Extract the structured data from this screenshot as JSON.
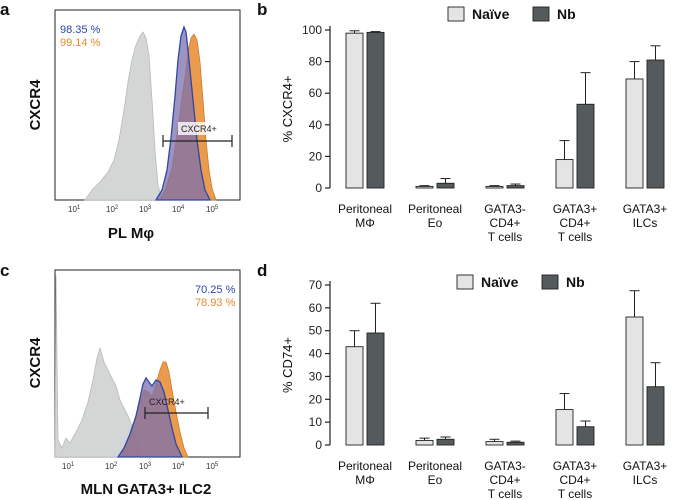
{
  "panels": {
    "a": {
      "letter": "a",
      "ylabel": "CXCR4",
      "xlabel": "PL Mφ",
      "pct_blue": "98.35 %",
      "pct_orange": "99.14 %",
      "gate_label": "CXCR4+"
    },
    "b": {
      "letter": "b"
    },
    "c": {
      "letter": "c",
      "ylabel": "CXCR4",
      "xlabel": "MLN GATA3+ ILC2",
      "pct_blue": "70.25 %",
      "pct_orange": "78.93 %",
      "gate_label": "CXCR4+"
    },
    "d": {
      "letter": "d"
    }
  },
  "colors": {
    "naive": "#e4e4e4",
    "nb": "#555a5c",
    "blue": "#2f47a5",
    "orange": "#e8892e",
    "grey_hist": "#d4d6d6"
  },
  "chart_data": [
    {
      "panel": "a",
      "type": "area",
      "ylabel": "CXCR4",
      "xlabel": "PL Mφ",
      "x_scale": "log",
      "x_ticks": [
        "10^1",
        "10^2",
        "10^3",
        "10^4",
        "10^5"
      ],
      "series": [
        {
          "value_label": "98.35 %",
          "color": "#2f47a5"
        },
        {
          "value_label": "99.14 %",
          "color": "#e8892e"
        }
      ],
      "gate": "CXCR4+"
    },
    {
      "panel": "b",
      "type": "bar",
      "categories": [
        "Peritoneal MΦ",
        "Peritoneal Eo",
        "GATA3- CD4+ T cells",
        "GATA3+ CD4+ T cells",
        "GATA3+ ILCs"
      ],
      "category_lines": [
        [
          "Peritoneal",
          "MΦ"
        ],
        [
          "Peritoneal",
          "Eo"
        ],
        [
          "GATA3-",
          "CD4+",
          "T cells"
        ],
        [
          "GATA3+",
          "CD4+",
          "T cells"
        ],
        [
          "GATA3+",
          "ILCs"
        ]
      ],
      "series": [
        {
          "name": "Naïve",
          "values": [
            98,
            1,
            1,
            18,
            69
          ],
          "errors": [
            1.5,
            0.5,
            0.5,
            12,
            11
          ]
        },
        {
          "name": "Nb",
          "values": [
            98.5,
            3,
            1.5,
            53,
            81
          ],
          "errors": [
            0.5,
            3,
            1,
            20,
            9
          ]
        }
      ],
      "ylabel": "% CXCR4+",
      "ylim": [
        0,
        100
      ],
      "yticks": [
        0,
        20,
        40,
        60,
        80,
        100
      ],
      "legend": "top"
    },
    {
      "panel": "c",
      "type": "area",
      "ylabel": "CXCR4",
      "xlabel": "MLN GATA3+ ILC2",
      "x_scale": "log",
      "x_ticks": [
        "10^1",
        "10^2",
        "10^3",
        "10^4",
        "10^5"
      ],
      "series": [
        {
          "value_label": "70.25 %",
          "color": "#2f47a5"
        },
        {
          "value_label": "78.93 %",
          "color": "#e8892e"
        }
      ],
      "gate": "CXCR4+"
    },
    {
      "panel": "d",
      "type": "bar",
      "categories": [
        "Peritoneal MΦ",
        "Peritoneal Eo",
        "GATA3- CD4+ T cells",
        "GATA3+ CD4+ T cells",
        "GATA3+ ILCs"
      ],
      "category_lines": [
        [
          "Peritoneal",
          "MΦ"
        ],
        [
          "Peritoneal",
          "Eo"
        ],
        [
          "GATA3-",
          "CD4+",
          "T cells"
        ],
        [
          "GATA3+",
          "CD4+",
          "T cells"
        ],
        [
          "GATA3+",
          "ILCs"
        ]
      ],
      "series": [
        {
          "name": "Naïve",
          "values": [
            43,
            2,
            1.5,
            15.5,
            56
          ],
          "errors": [
            7,
            1,
            1,
            7,
            11.5
          ]
        },
        {
          "name": "Nb",
          "values": [
            49,
            2.5,
            1.2,
            8,
            25.5
          ],
          "errors": [
            13,
            1,
            0.5,
            2.5,
            10.5
          ]
        }
      ],
      "ylabel": "% CD74+",
      "ylim": [
        0,
        70
      ],
      "yticks": [
        0,
        10,
        20,
        30,
        40,
        50,
        60,
        70
      ],
      "legend": "top"
    }
  ]
}
